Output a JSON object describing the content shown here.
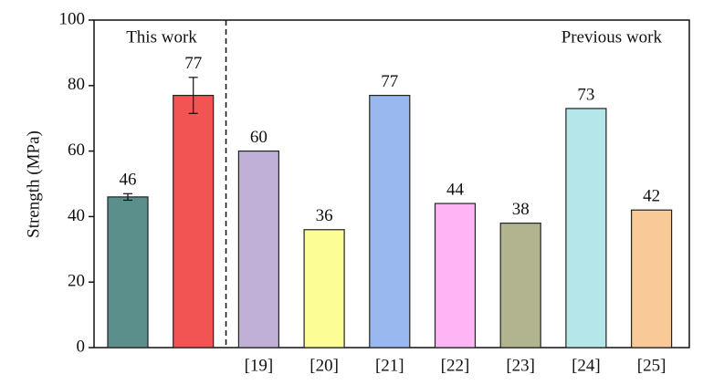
{
  "chart_data": {
    "type": "bar",
    "y_label": "Strength (MPa)",
    "annotations": [
      "This work",
      "Previous work"
    ],
    "categories": [
      null,
      null,
      "[19]",
      "[20]",
      "[21]",
      "[22]",
      "[23]",
      "[24]",
      "[25]"
    ],
    "values": [
      46,
      77,
      60,
      36,
      77,
      44,
      38,
      73,
      42
    ],
    "errors": [
      1,
      5.5,
      null,
      null,
      null,
      null,
      null,
      null,
      null
    ],
    "colors": [
      "#5a8f8c",
      "#f25454",
      "#c0b0d8",
      "#fdfd96",
      "#9ab8f0",
      "#fdb5f5",
      "#b2b48f",
      "#b4e6ea",
      "#f9c998"
    ],
    "ylim": [
      0,
      100
    ],
    "yticks": [
      0,
      20,
      40,
      60,
      80,
      100
    ]
  }
}
